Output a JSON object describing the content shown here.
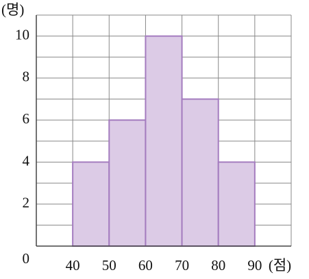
{
  "chart_data": {
    "type": "histogram",
    "y_unit_label": "(명)",
    "x_unit_label": "(점)",
    "bins": [
      40,
      50,
      60,
      70,
      80,
      90
    ],
    "values": [
      4,
      6,
      10,
      7,
      4
    ],
    "color": "#dccbe6",
    "edge_color": "#a47cbf",
    "xlim": [
      30,
      100
    ],
    "ylim": [
      0,
      11
    ],
    "xticks": [
      40,
      50,
      60,
      70,
      80,
      90
    ],
    "yticks": [
      0,
      2,
      4,
      6,
      8,
      10
    ],
    "grid": true,
    "grid_step_x": 10,
    "grid_step_y": 1
  }
}
